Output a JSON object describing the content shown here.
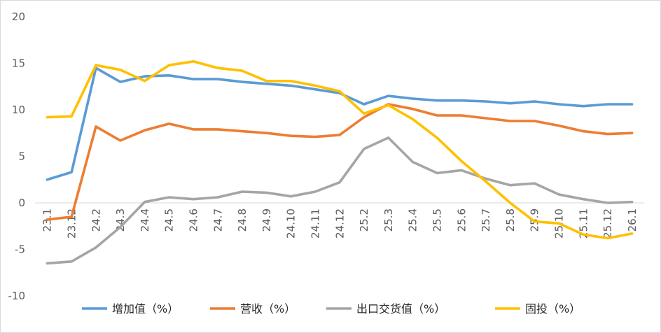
{
  "chart_data": {
    "type": "line",
    "title": "",
    "xlabel": "",
    "ylabel": "",
    "ylim": [
      -10,
      20
    ],
    "yticks": [
      20,
      15,
      10,
      5,
      0,
      -5,
      -10
    ],
    "grid": false,
    "legend_position": "bottom",
    "categories": [
      "23.1",
      "23.12",
      "24.2",
      "24.3",
      "24.4",
      "24.5",
      "24.6",
      "24.7",
      "24.8",
      "24.9",
      "24.10",
      "24.11",
      "24.12",
      "25.2",
      "25.3",
      "25.4",
      "25.5",
      "25.6",
      "25.7",
      "25.8",
      "25.9",
      "25.10",
      "25.11",
      "25.12",
      "26.1"
    ],
    "series": [
      {
        "name": "增加值（%）",
        "color": "#5B9BD5",
        "values": [
          2.5,
          3.3,
          14.5,
          13.0,
          13.6,
          13.7,
          13.3,
          13.3,
          13.0,
          12.8,
          12.6,
          12.2,
          11.8,
          10.6,
          11.5,
          11.2,
          11.0,
          11.0,
          10.9,
          10.7,
          10.9,
          10.6,
          10.4,
          10.6,
          10.6
        ]
      },
      {
        "name": "营收（%）",
        "color": "#ED7D31",
        "values": [
          -1.8,
          -1.5,
          8.2,
          6.7,
          7.8,
          8.5,
          7.9,
          7.9,
          7.7,
          7.5,
          7.2,
          7.1,
          7.3,
          9.2,
          10.6,
          10.1,
          9.4,
          9.4,
          9.1,
          8.8,
          8.8,
          8.3,
          7.7,
          7.4,
          7.5
        ]
      },
      {
        "name": "出口交货值（%）",
        "color": "#A5A5A5",
        "values": [
          -6.5,
          -6.3,
          -4.8,
          -2.6,
          0.1,
          0.6,
          0.4,
          0.6,
          1.2,
          1.1,
          0.7,
          1.2,
          2.2,
          5.8,
          7.0,
          4.4,
          3.2,
          3.5,
          2.6,
          1.9,
          2.1,
          0.9,
          0.4,
          0.0,
          0.1
        ]
      },
      {
        "name": "固投（%）",
        "color": "#FFC000",
        "values": [
          9.2,
          9.3,
          14.8,
          14.3,
          13.1,
          14.8,
          15.2,
          14.5,
          14.2,
          13.1,
          13.1,
          12.6,
          12.0,
          9.6,
          10.5,
          9.0,
          7.0,
          4.5,
          2.3,
          0.0,
          -2.0,
          -2.2,
          -3.4,
          -3.8,
          -3.3
        ]
      }
    ]
  }
}
